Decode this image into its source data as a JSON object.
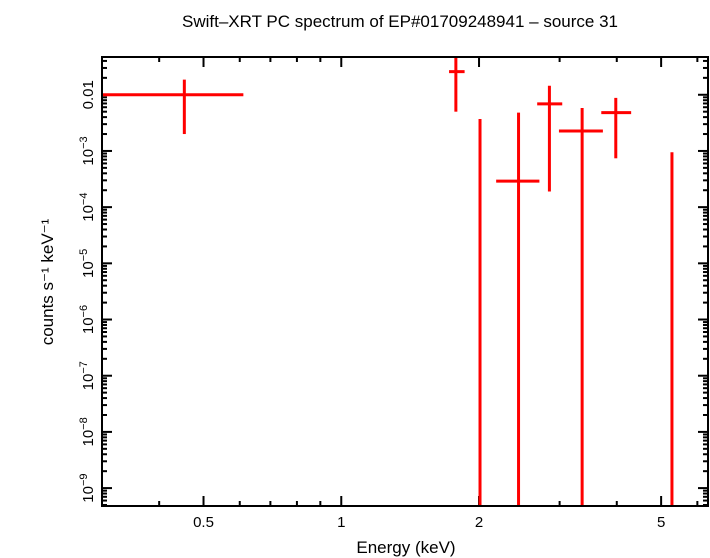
{
  "chart_data": {
    "type": "scatter",
    "title": "Swift–XRT PC spectrum of EP#01709248941 – source 31",
    "xlabel": "Energy (keV)",
    "ylabel": "counts s⁻¹ keV⁻¹",
    "xscale": "log",
    "yscale": "log",
    "xlim": [
      0.3,
      6.33
    ],
    "ylim": [
      4.8e-10,
      0.047
    ],
    "grid": false,
    "color": "#ff0000",
    "xticks": [
      {
        "value": 0.5,
        "label": "0.5"
      },
      {
        "value": 1,
        "label": "1"
      },
      {
        "value": 2,
        "label": "2"
      },
      {
        "value": 5,
        "label": "5"
      }
    ],
    "yticks": [
      {
        "value": 0.01,
        "label": "0.01",
        "base": "",
        "exp": ""
      },
      {
        "value": 0.001,
        "label": "",
        "base": "10",
        "exp": "−3"
      },
      {
        "value": 0.0001,
        "label": "",
        "base": "10",
        "exp": "−4"
      },
      {
        "value": 1e-05,
        "label": "",
        "base": "10",
        "exp": "−5"
      },
      {
        "value": 1e-06,
        "label": "",
        "base": "10",
        "exp": "−6"
      },
      {
        "value": 1e-07,
        "label": "",
        "base": "10",
        "exp": "−7"
      },
      {
        "value": 1e-08,
        "label": "",
        "base": "10",
        "exp": "−8"
      },
      {
        "value": 1e-09,
        "label": "",
        "base": "10",
        "exp": "−9"
      }
    ],
    "points": [
      {
        "x": 0.454,
        "xlo": 0.3,
        "xhi": 0.611,
        "y": 0.01,
        "ylo": 0.002,
        "yhi": 0.0186
      },
      {
        "x": 1.78,
        "xlo": 1.72,
        "xhi": 1.86,
        "y": 0.0258,
        "ylo": 0.005,
        "yhi": 0.06
      },
      {
        "x": 2.01,
        "xlo": 2.01,
        "xhi": 2.01,
        "y": null,
        "ylo": 0,
        "yhi": 0.0037
      },
      {
        "x": 2.44,
        "xlo": 2.18,
        "xhi": 2.71,
        "y": 0.00029,
        "ylo": 0,
        "yhi": 0.0048
      },
      {
        "x": 2.85,
        "xlo": 2.68,
        "xhi": 3.04,
        "y": 0.0069,
        "ylo": 0.00019,
        "yhi": 0.0145
      },
      {
        "x": 3.36,
        "xlo": 2.99,
        "xhi": 3.73,
        "y": 0.00227,
        "ylo": 0,
        "yhi": 0.0058
      },
      {
        "x": 3.98,
        "xlo": 3.7,
        "xhi": 4.3,
        "y": 0.0048,
        "ylo": 0.00074,
        "yhi": 0.0088
      },
      {
        "x": 5.28,
        "xlo": 5.28,
        "xhi": 5.28,
        "y": null,
        "ylo": 0,
        "yhi": 0.00095
      }
    ]
  }
}
